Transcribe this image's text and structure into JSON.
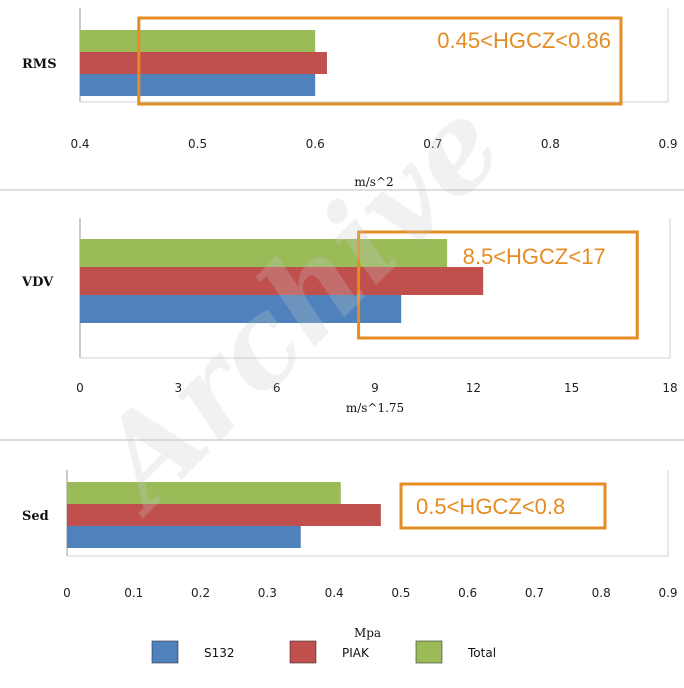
{
  "watermark_text": "Archive",
  "annotation_color": "#e58c22",
  "chart_data": [
    {
      "type": "bar",
      "orientation": "horizontal",
      "categories": [
        "RMS"
      ],
      "unit_label": "m/s^2",
      "xlim": [
        0.4,
        0.9
      ],
      "ticks": [
        "0.4",
        "0.5",
        "0.6",
        "0.7",
        "0.8",
        "0.9"
      ],
      "tick_values": [
        0.4,
        0.5,
        0.6,
        0.7,
        0.8,
        0.9
      ],
      "series": [
        {
          "name": "S132",
          "color": "#4f81bd",
          "values": [
            0.6
          ]
        },
        {
          "name": "PIAK",
          "color": "#c0504d",
          "values": [
            0.61
          ]
        },
        {
          "name": "Total",
          "color": "#9bbb59",
          "values": [
            0.6
          ]
        }
      ],
      "annotation": {
        "text": "0.45<HGCZ<0.86",
        "range": [
          0.45,
          0.86
        ]
      }
    },
    {
      "type": "bar",
      "orientation": "horizontal",
      "categories": [
        "VDV"
      ],
      "unit_label": "m/s^1.75",
      "xlim": [
        0,
        18
      ],
      "ticks": [
        "0",
        "3",
        "6",
        "9",
        "12",
        "15",
        "18"
      ],
      "tick_values": [
        0,
        3,
        6,
        9,
        12,
        15,
        18
      ],
      "series": [
        {
          "name": "S132",
          "color": "#4f81bd",
          "values": [
            9.8
          ]
        },
        {
          "name": "PIAK",
          "color": "#c0504d",
          "values": [
            12.3
          ]
        },
        {
          "name": "Total",
          "color": "#9bbb59",
          "values": [
            11.2
          ]
        }
      ],
      "annotation": {
        "text": "8.5<HGCZ<17",
        "range": [
          8.5,
          17
        ]
      }
    },
    {
      "type": "bar",
      "orientation": "horizontal",
      "categories": [
        "Sed"
      ],
      "unit_label": "Mpa",
      "xlim": [
        0,
        0.9
      ],
      "ticks": [
        "0",
        "0.1",
        "0.2",
        "0.3",
        "0.4",
        "0.5",
        "0.6",
        "0.7",
        "0.8",
        "0.9"
      ],
      "tick_values": [
        0,
        0.1,
        0.2,
        0.3,
        0.4,
        0.5,
        0.6,
        0.7,
        0.8,
        0.9
      ],
      "series": [
        {
          "name": "S132",
          "color": "#4f81bd",
          "values": [
            0.35
          ]
        },
        {
          "name": "PIAK",
          "color": "#c0504d",
          "values": [
            0.47
          ]
        },
        {
          "name": "Total",
          "color": "#9bbb59",
          "values": [
            0.41
          ]
        }
      ],
      "annotation": {
        "text": "0.5<HGCZ<0.8",
        "range": [
          0.5,
          0.8
        ]
      }
    }
  ],
  "legend": [
    {
      "label": "S132",
      "color": "#4f81bd"
    },
    {
      "label": "PIAK",
      "color": "#c0504d"
    },
    {
      "label": "Total",
      "color": "#9bbb59"
    }
  ]
}
